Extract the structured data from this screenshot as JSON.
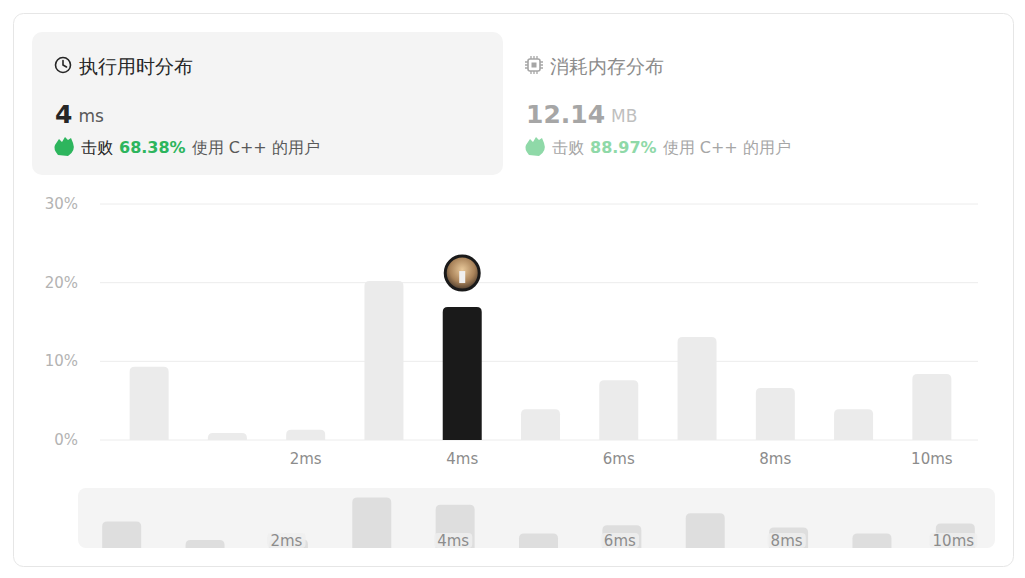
{
  "tabs": [
    {
      "title": "执行用时分布",
      "value": "4",
      "unit": "ms",
      "beat_prefix": "击败",
      "beat": "68.38%",
      "beat_suffix": "使用 C++ 的用户"
    },
    {
      "title": "消耗内存分布",
      "value": "12.14",
      "unit": "MB",
      "beat_prefix": "击败",
      "beat": "88.97%",
      "beat_suffix": "使用 C++ 的用户"
    }
  ],
  "chart_data": {
    "type": "bar",
    "categories": [
      null,
      null,
      "2ms",
      null,
      "4ms",
      null,
      "6ms",
      null,
      "8ms",
      null,
      "10ms"
    ],
    "values": [
      9.3,
      0.9,
      1.3,
      20.2,
      16.9,
      3.9,
      7.6,
      13.1,
      6.6,
      3.9,
      8.4
    ],
    "colors": [
      "#ebebeb",
      "#ebebeb",
      "#ebebeb",
      "#ebebeb",
      "#1a1a1a",
      "#ebebeb",
      "#ebebeb",
      "#ebebeb",
      "#ebebeb",
      "#ebebeb",
      "#ebebeb"
    ],
    "ylim": [
      0,
      30
    ],
    "yticks": [
      {
        "value": 0,
        "label": "0%"
      },
      {
        "value": 10,
        "label": "10%"
      },
      {
        "value": 20,
        "label": "20%"
      },
      {
        "value": 30,
        "label": "30%"
      }
    ],
    "grid": true
  }
}
